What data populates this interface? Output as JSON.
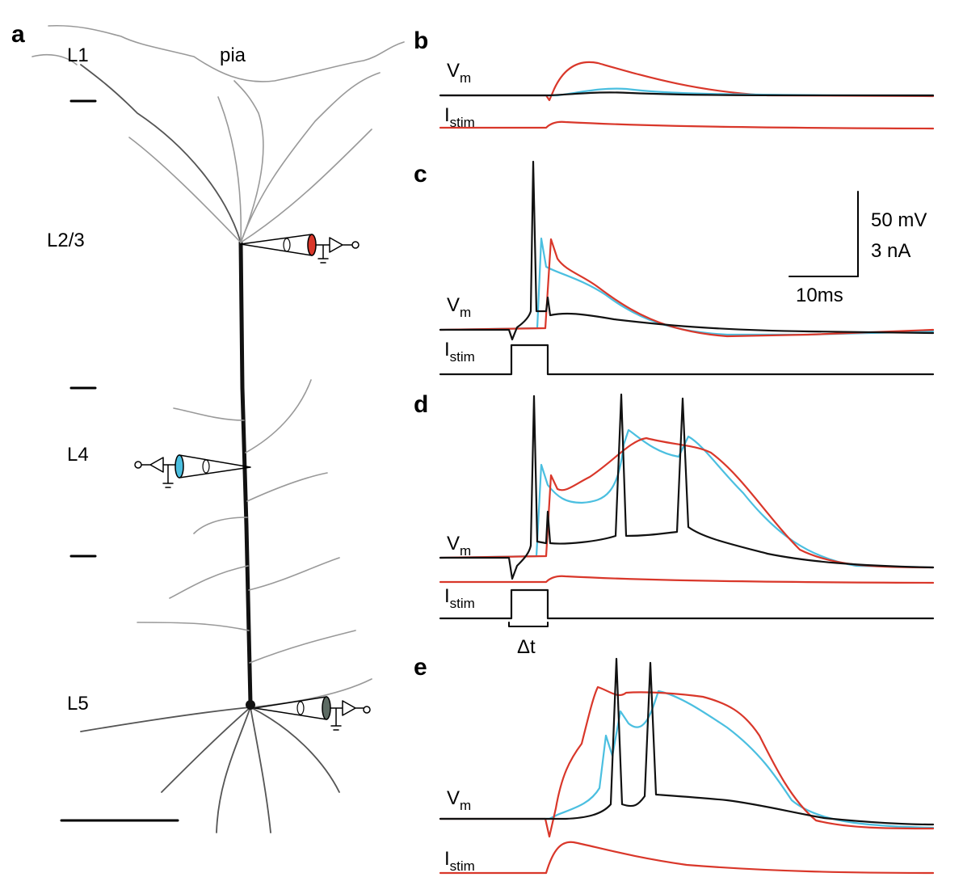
{
  "panel_a": {
    "label": "a",
    "pia": "pia",
    "layers": [
      "L1",
      "L2/3",
      "L4",
      "L5"
    ]
  },
  "panels": [
    {
      "label": "b",
      "vm": "V",
      "vm_sub": "m",
      "istim": "I",
      "istim_sub": "stim"
    },
    {
      "label": "c",
      "vm": "V",
      "vm_sub": "m",
      "istim": "I",
      "istim_sub": "stim"
    },
    {
      "label": "d",
      "vm": "V",
      "vm_sub": "m",
      "istim": "I",
      "istim_sub": "stim"
    },
    {
      "label": "e",
      "vm": "V",
      "vm_sub": "m",
      "istim": "I",
      "istim_sub": "stim"
    }
  ],
  "scale_bar": {
    "voltage": "50 mV",
    "current": "3 nA",
    "time": "10ms"
  },
  "delta_t": "Δt"
}
